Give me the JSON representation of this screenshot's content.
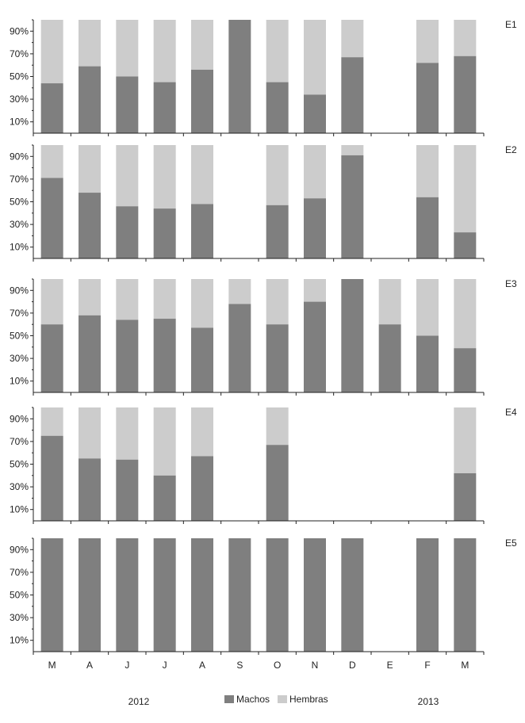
{
  "chart_data": {
    "type": "bar",
    "stacked": true,
    "percent": true,
    "categories": [
      "M",
      "A",
      "J",
      "J",
      "A",
      "S",
      "O",
      "N",
      "D",
      "E",
      "F",
      "M"
    ],
    "years": [
      "2012",
      "2013"
    ],
    "yticks": [
      "10%",
      "30%",
      "50%",
      "70%",
      "90%"
    ],
    "ylim": [
      0,
      100
    ],
    "legend": {
      "placement": "bottom",
      "entries": [
        {
          "name": "Machos",
          "color": "#7f7f7f"
        },
        {
          "name": "Hembras",
          "color": "#cccccc"
        }
      ]
    },
    "panels": [
      {
        "label": "E1",
        "machos": [
          44,
          59,
          50,
          45,
          56,
          100,
          45,
          34,
          67,
          null,
          62,
          68
        ],
        "hembras": [
          56,
          41,
          50,
          55,
          44,
          0,
          55,
          66,
          33,
          null,
          38,
          32
        ]
      },
      {
        "label": "E2",
        "machos": [
          71,
          58,
          46,
          44,
          48,
          null,
          47,
          53,
          91,
          null,
          54,
          23
        ],
        "hembras": [
          29,
          42,
          54,
          56,
          52,
          null,
          53,
          47,
          9,
          null,
          46,
          77
        ]
      },
      {
        "label": "E3",
        "machos": [
          60,
          68,
          64,
          65,
          57,
          78,
          60,
          80,
          100,
          60,
          50,
          39
        ],
        "hembras": [
          40,
          32,
          36,
          35,
          43,
          22,
          40,
          20,
          0,
          40,
          50,
          61
        ]
      },
      {
        "label": "E4",
        "machos": [
          75,
          55,
          54,
          40,
          57,
          null,
          67,
          null,
          null,
          null,
          null,
          42
        ],
        "hembras": [
          25,
          45,
          46,
          60,
          43,
          null,
          33,
          null,
          null,
          null,
          null,
          58
        ]
      },
      {
        "label": "E5",
        "machos": [
          100,
          100,
          100,
          100,
          100,
          100,
          100,
          100,
          100,
          null,
          100,
          100
        ],
        "hembras": [
          0,
          0,
          0,
          0,
          0,
          0,
          0,
          0,
          0,
          null,
          0,
          0
        ]
      }
    ]
  }
}
